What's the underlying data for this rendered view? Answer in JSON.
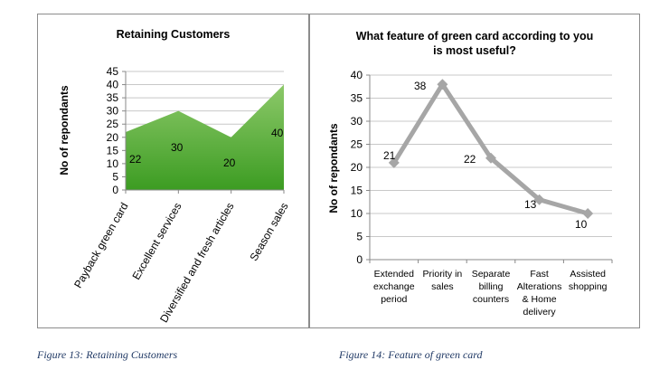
{
  "chart_data": [
    {
      "type": "area",
      "title": "Retaining Customers",
      "ylabel": "No of repondants",
      "xlabel": "",
      "categories": [
        "Payback green card",
        "Excellent services",
        "Diversified and fresh articles",
        "Season sales"
      ],
      "values": [
        22,
        30,
        20,
        40
      ],
      "data_labels": [
        "22",
        "30",
        "20",
        "40"
      ],
      "ylim": [
        0,
        45
      ],
      "y_ticks": [
        "0",
        "5",
        "10",
        "15",
        "20",
        "25",
        "30",
        "35",
        "40",
        "45"
      ],
      "grid": true,
      "legend": "none",
      "colors": {
        "fill_light": "#8dc96a",
        "fill_dark": "#3c9c22",
        "grid": "#c8c8c8"
      }
    },
    {
      "type": "line",
      "title": "What feature of green card according to you is most useful?",
      "title_lines": [
        "What feature of green card according to you",
        "is most useful?"
      ],
      "ylabel": "No of repondants",
      "xlabel": "",
      "categories": [
        "Extended exchange period",
        "Priority in sales",
        "Separate billing counters",
        "Fast Alterations & Home delivery",
        "Assisted shopping"
      ],
      "category_lines": [
        [
          "Extended",
          "exchange",
          "period"
        ],
        [
          "Priority in",
          "sales"
        ],
        [
          "Separate",
          "billing",
          "counters"
        ],
        [
          "Fast",
          "Alterations",
          "& Home",
          "delivery"
        ],
        [
          "Assisted",
          "shopping"
        ]
      ],
      "values": [
        21,
        38,
        22,
        13,
        10
      ],
      "data_labels": [
        "21",
        "38",
        "22",
        "13",
        "10"
      ],
      "ylim": [
        0,
        40
      ],
      "y_ticks": [
        "0",
        "5",
        "10",
        "15",
        "20",
        "25",
        "30",
        "35",
        "40"
      ],
      "grid": true,
      "legend": "none",
      "colors": {
        "line": "#a6a6a6",
        "grid": "#c8c8c8"
      }
    }
  ],
  "captions": {
    "figure13": "Figure 13: Retaining Customers",
    "figure14": "Figure 14: Feature of green card"
  }
}
